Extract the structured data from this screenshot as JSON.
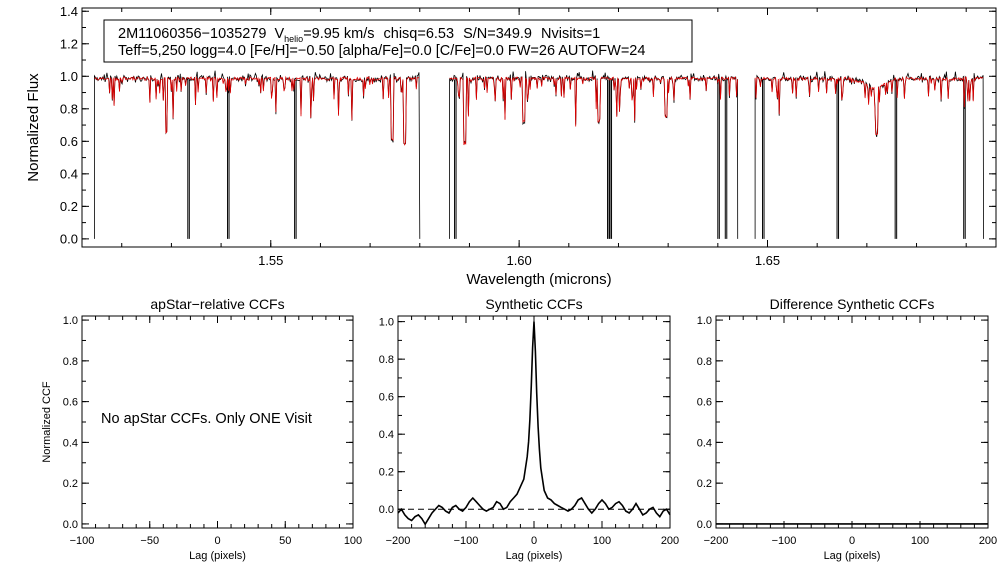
{
  "figure": {
    "top_panel": {
      "info_line1": {
        "star_id": "2M11060356−1035279",
        "vhelio_prefix": "V",
        "vhelio_sub": "helio",
        "vhelio_value": "=9.95 km/s",
        "chisq": "chisq=6.53",
        "snr": "S/N=349.9",
        "nvisits": "Nvisits=1"
      },
      "info_line2": "Teff=5,250 logg=4.0 [Fe/H]=−0.50 [alpha/Fe]=0.0 [C/Fe]=0.0 FW=26 AUTOFW=24"
    },
    "left_panel": {
      "message": "No apStar CCFs.  Only ONE Visit"
    }
  },
  "colors": {
    "observed": "#000000",
    "model": "#dd0000",
    "axes": "#000000"
  },
  "chart_data": [
    {
      "id": "spectrum",
      "type": "line",
      "title": "",
      "xlabel": "Wavelength (microns)",
      "ylabel": "Normalized Flux",
      "xlim": [
        1.512,
        1.696
      ],
      "ylim": [
        -0.05,
        1.42
      ],
      "xticks": [
        1.55,
        1.6,
        1.65
      ],
      "xtick_labels": [
        "1.55",
        "1.60",
        "1.65"
      ],
      "yticks": [
        0.0,
        0.2,
        0.4,
        0.6,
        0.8,
        1.0,
        1.2,
        1.4
      ],
      "ytick_labels": [
        "0.0",
        "0.2",
        "0.4",
        "0.6",
        "0.8",
        "1.0",
        "1.2",
        "1.4"
      ],
      "chip_ranges": [
        [
          1.5145,
          1.58
        ],
        [
          1.586,
          1.644
        ],
        [
          1.6475,
          1.6935
        ]
      ],
      "series": [
        {
          "name": "observed",
          "color": "#000000"
        },
        {
          "name": "model",
          "color": "#dd0000"
        }
      ],
      "approx_features": {
        "gap_drops_to_zero_at": [
          1.5333,
          1.5413,
          1.5548,
          1.587,
          1.6178,
          1.6183,
          1.64,
          1.6415,
          1.649,
          1.664,
          1.6757,
          1.6895
        ],
        "deep_absorption_lines": [
          {
            "x": 1.529,
            "depth": 0.67
          },
          {
            "x": 1.577,
            "depth": 0.6
          },
          {
            "x": 1.5745,
            "depth": 0.63
          },
          {
            "x": 1.589,
            "depth": 0.6
          },
          {
            "x": 1.601,
            "depth": 0.74
          },
          {
            "x": 1.616,
            "depth": 0.74
          },
          {
            "x": 1.6295,
            "depth": 0.77
          },
          {
            "x": 1.672,
            "depth": 0.72
          }
        ]
      }
    },
    {
      "id": "apstar_ccf",
      "type": "line",
      "title": "apStar−relative CCFs",
      "xlabel": "Lag (pixels)",
      "ylabel": "Normalized CCF",
      "xlim": [
        -100,
        100
      ],
      "ylim": [
        -0.02,
        1.02
      ],
      "xticks": [
        -100,
        -50,
        0,
        50,
        100
      ],
      "xtick_labels": [
        "−100",
        "−50",
        "0",
        "50",
        "100"
      ],
      "yticks": [
        0.0,
        0.2,
        0.4,
        0.6,
        0.8,
        1.0
      ],
      "ytick_labels": [
        "0.0",
        "0.2",
        "0.4",
        "0.6",
        "0.8",
        "1.0"
      ],
      "series": []
    },
    {
      "id": "synthetic_ccf",
      "type": "line",
      "title": "Synthetic CCFs",
      "xlabel": "Lag (pixels)",
      "ylabel": "",
      "xlim": [
        -200,
        200
      ],
      "ylim": [
        -0.1,
        1.03
      ],
      "xticks": [
        -200,
        -100,
        0,
        100,
        200
      ],
      "xtick_labels": [
        "−200",
        "−100",
        "0",
        "100",
        "200"
      ],
      "yticks": [
        0.0,
        0.2,
        0.4,
        0.6,
        0.8,
        1.0
      ],
      "ytick_labels": [
        "0.0",
        "0.2",
        "0.4",
        "0.6",
        "0.8",
        "1.0"
      ],
      "reference_line_y": 0.0,
      "series": [
        {
          "name": "ccf",
          "x": [
            -200,
            -195,
            -190,
            -185,
            -180,
            -175,
            -170,
            -165,
            -160,
            -155,
            -150,
            -145,
            -140,
            -135,
            -130,
            -125,
            -120,
            -115,
            -110,
            -105,
            -100,
            -95,
            -90,
            -85,
            -80,
            -75,
            -70,
            -65,
            -60,
            -55,
            -50,
            -45,
            -40,
            -35,
            -30,
            -25,
            -20,
            -15,
            -10,
            -8,
            -6,
            -4,
            -2,
            0,
            2,
            4,
            6,
            8,
            10,
            15,
            20,
            25,
            30,
            35,
            40,
            45,
            50,
            55,
            60,
            65,
            70,
            75,
            80,
            85,
            90,
            95,
            100,
            105,
            110,
            115,
            120,
            125,
            130,
            135,
            140,
            145,
            150,
            155,
            160,
            165,
            170,
            175,
            180,
            185,
            190,
            195,
            200
          ],
          "y": [
            -0.02,
            0.0,
            -0.03,
            -0.05,
            -0.06,
            -0.04,
            -0.03,
            -0.05,
            -0.08,
            -0.05,
            -0.02,
            0.0,
            0.02,
            0.01,
            -0.01,
            -0.02,
            0.01,
            0.02,
            0.0,
            -0.01,
            0.01,
            0.04,
            0.06,
            0.04,
            0.02,
            0.0,
            -0.01,
            0.0,
            0.01,
            0.04,
            0.03,
            0.0,
            0.01,
            0.04,
            0.06,
            0.08,
            0.12,
            0.16,
            0.28,
            0.36,
            0.48,
            0.66,
            0.86,
            1.0,
            0.84,
            0.62,
            0.44,
            0.32,
            0.22,
            0.1,
            0.06,
            0.05,
            0.03,
            0.02,
            0.01,
            0.0,
            -0.01,
            0.0,
            0.02,
            0.05,
            0.06,
            0.03,
            0.0,
            -0.02,
            0.0,
            0.03,
            0.05,
            0.03,
            0.0,
            0.01,
            0.03,
            0.04,
            0.02,
            -0.01,
            -0.02,
            0.0,
            0.03,
            0.0,
            -0.03,
            -0.02,
            0.0,
            0.01,
            -0.02,
            -0.04,
            -0.01,
            0.0,
            -0.03
          ]
        }
      ]
    },
    {
      "id": "difference_ccf",
      "type": "line",
      "title": "Difference Synthetic CCFs",
      "xlabel": "Lag (pixels)",
      "ylabel": "",
      "xlim": [
        -200,
        200
      ],
      "ylim": [
        -0.02,
        1.02
      ],
      "xticks": [
        -200,
        -100,
        0,
        100,
        200
      ],
      "xtick_labels": [
        "−200",
        "−100",
        "0",
        "100",
        "200"
      ],
      "yticks": [
        0.0,
        0.2,
        0.4,
        0.6,
        0.8,
        1.0
      ],
      "ytick_labels": [
        "0.0",
        "0.2",
        "0.4",
        "0.6",
        "0.8",
        "1.0"
      ],
      "flat_value": 0.0,
      "series": []
    }
  ]
}
